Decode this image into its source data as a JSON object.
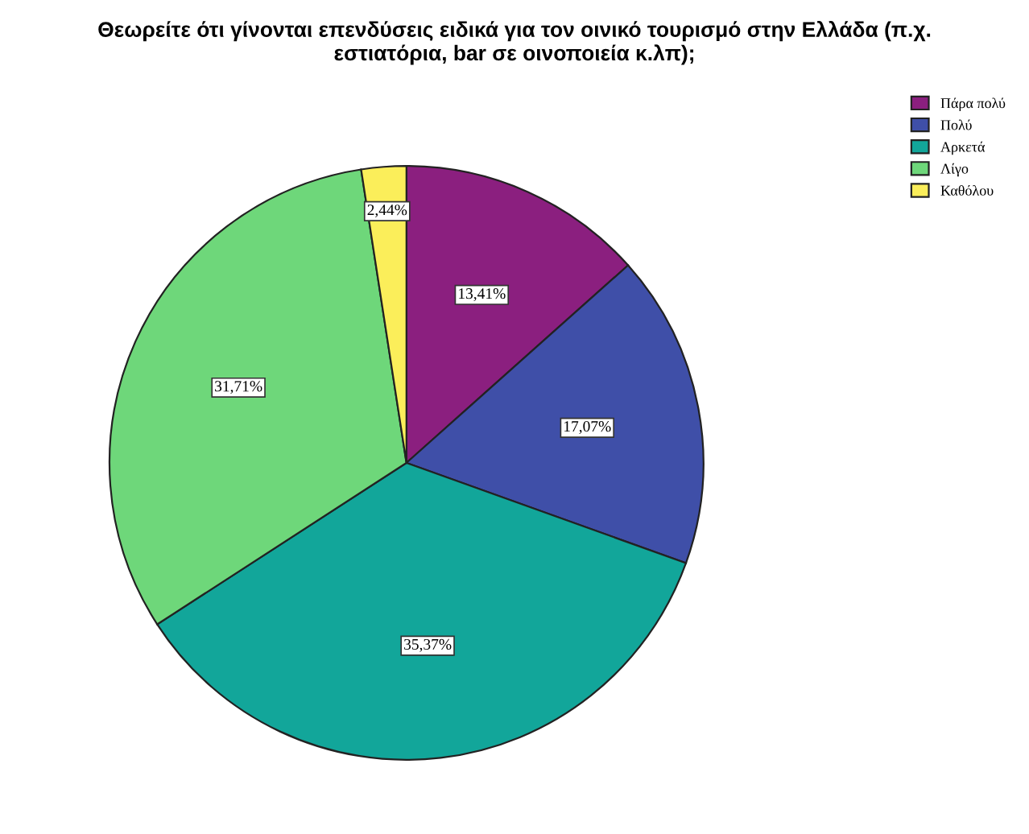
{
  "chart_data": {
    "type": "pie",
    "title": "Θεωρείτε ότι γίνονται επενδύσεις ειδικά για τον οινικό τουρισμό στην Ελλάδα (π.χ.\nεστιατόρια, bar σε οινοποιεία κ.λπ);",
    "categories": [
      "Πάρα πολύ",
      "Πολύ",
      "Αρκετά",
      "Λίγο",
      "Καθόλου"
    ],
    "values": [
      13.41,
      17.07,
      35.37,
      31.71,
      2.44
    ],
    "colors": [
      "#8b1f7f",
      "#3f4fa8",
      "#12a69a",
      "#6ed77a",
      "#fbee5a"
    ],
    "value_labels": [
      "13,41%",
      "17,07%",
      "35,37%",
      "31,71%",
      "2,44%"
    ],
    "legend": "top right"
  }
}
